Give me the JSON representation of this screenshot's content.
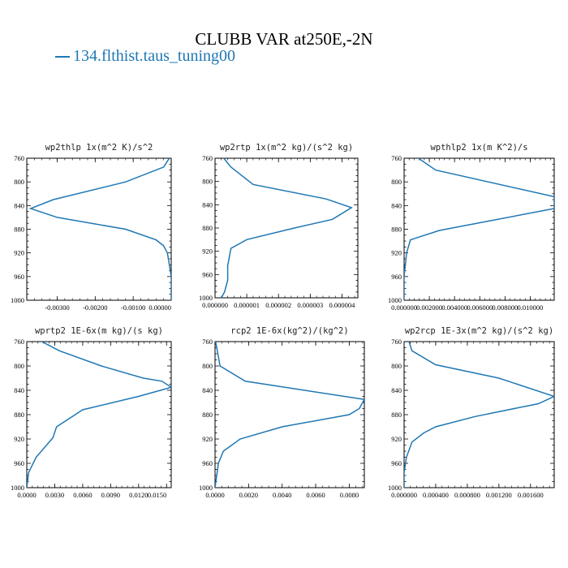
{
  "title": "CLUBB VAR at250E,-2N",
  "legend": {
    "label": "134.flthist.taus_tuning00",
    "color": "#1f77b4"
  },
  "chart_data": [
    {
      "type": "line",
      "title": "wp2thlp   1x(m^2 K)/s^2",
      "y": [
        755,
        775,
        800,
        830,
        845,
        860,
        880,
        898,
        908,
        920,
        960,
        1000
      ],
      "x": [
        -0.0,
        -0.0002,
        -0.0012,
        -0.0031,
        -0.0037,
        -0.003,
        -0.0012,
        -0.0004,
        -0.0002,
        -0.0001,
        -0.0,
        -0.0
      ],
      "xlim": [
        -0.0038,
        0.0
      ],
      "ylim": [
        760,
        1000
      ],
      "xticks": [
        "-0.00300",
        "-0.00200",
        "-0.00100",
        "0.00000"
      ],
      "yticks": [
        "760",
        "800",
        "840",
        "880",
        "920",
        "960",
        "1000"
      ]
    },
    {
      "type": "line",
      "title": "wp2rtp   1x(m^2 kg)/(s^2 kg)",
      "y": [
        755,
        775,
        805,
        830,
        845,
        865,
        880,
        900,
        915,
        945,
        970,
        990,
        1000
      ],
      "x": [
        2e-07,
        5e-07,
        1.2e-06,
        3.5e-06,
        4.3e-06,
        3.7e-06,
        2.5e-06,
        1e-06,
        5e-07,
        4e-07,
        4e-07,
        3e-07,
        2e-07
      ],
      "xlim": [
        0.0,
        4.5e-06
      ],
      "ylim": [
        760,
        1000
      ],
      "xticks": [
        "0.000000",
        "0.000001",
        "0.000002",
        "0.000003",
        "0.000004"
      ],
      "yticks": [
        "760",
        "800",
        "840",
        "880",
        "920",
        "960",
        "1000"
      ]
    },
    {
      "type": "line",
      "title": "wpthlp2   1x(m K^2)/s",
      "y": [
        755,
        780,
        825,
        835,
        845,
        882,
        898,
        920,
        960,
        1000
      ],
      "x": [
        0.0008,
        0.0025,
        0.0119,
        0.0119,
        0.0119,
        0.0028,
        0.0005,
        0.0002,
        0.0,
        0.0
      ],
      "xlim": [
        0.0,
        0.0119
      ],
      "ylim": [
        760,
        1000
      ],
      "xticks": [
        "0.000000",
        "0.002000",
        "0.004000",
        "0.006000",
        "0.008000",
        "0.010000"
      ],
      "yticks": [
        "760",
        "800",
        "840",
        "880",
        "920",
        "960",
        "1000"
      ]
    },
    {
      "type": "line",
      "title": "wprtp2   1E-6x(m kg)/(s kg)",
      "y": [
        755,
        775,
        800,
        820,
        825,
        835,
        850,
        872,
        900,
        918,
        950,
        975,
        1000
      ],
      "x": [
        0.001,
        0.0035,
        0.008,
        0.0125,
        0.0145,
        0.0155,
        0.012,
        0.006,
        0.0032,
        0.0028,
        0.001,
        0.0002,
        0.0
      ],
      "xlim": [
        0.0,
        0.0155
      ],
      "ylim": [
        760,
        1000
      ],
      "xticks": [
        "0.0000",
        "0.0030",
        "0.0060",
        "0.0090",
        "0.0120",
        "0.0150"
      ],
      "yticks": [
        "760",
        "800",
        "840",
        "880",
        "920",
        "960",
        "1000"
      ]
    },
    {
      "type": "line",
      "title": "rcp2   1E-6x(kg^2)/(kg^2)",
      "y": [
        755,
        770,
        800,
        825,
        855,
        870,
        880,
        900,
        920,
        940,
        960,
        980,
        1000
      ],
      "x": [
        0.0,
        0.0001,
        0.0003,
        0.0018,
        0.0089,
        0.0086,
        0.008,
        0.004,
        0.0015,
        0.0005,
        0.0002,
        0.0001,
        0.0
      ],
      "xlim": [
        0.0,
        0.0089
      ],
      "ylim": [
        760,
        1000
      ],
      "xticks": [
        "0.0000",
        "0.0020",
        "0.0040",
        "0.0060",
        "0.0080"
      ],
      "yticks": [
        "760",
        "800",
        "840",
        "880",
        "920",
        "960",
        "1000"
      ]
    },
    {
      "type": "line",
      "title": "wp2rcp   1E-3x(m^2 kg)/(s^2 kg)",
      "y": [
        755,
        775,
        798,
        820,
        850,
        862,
        883,
        900,
        910,
        925,
        950,
        975,
        1000
      ],
      "x": [
        5e-05,
        0.0001,
        0.0004,
        0.0012,
        0.0019,
        0.0017,
        0.0009,
        0.0004,
        0.00025,
        0.0001,
        3e-05,
        0.0,
        0.0
      ],
      "xlim": [
        0.0,
        0.0019
      ],
      "ylim": [
        760,
        1000
      ],
      "xticks": [
        "0.000000",
        "0.000400",
        "0.000800",
        "0.001200",
        "0.001600"
      ],
      "yticks": [
        "760",
        "800",
        "840",
        "880",
        "920",
        "960",
        "1000"
      ]
    }
  ]
}
